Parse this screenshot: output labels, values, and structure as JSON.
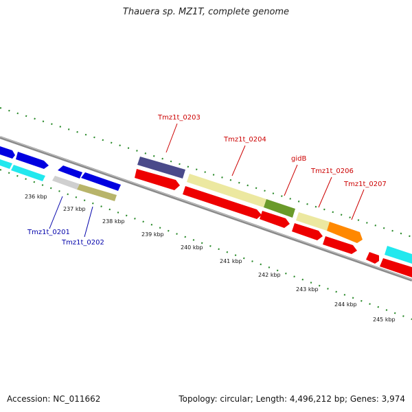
{
  "title": "Thauera sp. MZ1T, complete genome",
  "footer": {
    "accession": "Accession: NC_011662",
    "summary": "Topology: circular; Length: 4,496,212 bp; Genes: 3,974"
  },
  "colors": {
    "tick_green": "#2a8a2a",
    "label_red": "#cc0000",
    "label_blue": "#0000aa",
    "backbone": "#888888"
  },
  "ticks": [
    {
      "label": "236 kbp"
    },
    {
      "label": "237 kbp"
    },
    {
      "label": "238 kbp"
    },
    {
      "label": "239 kbp"
    },
    {
      "label": "240 kbp"
    },
    {
      "label": "241 kbp"
    },
    {
      "label": "242 kbp"
    },
    {
      "label": "243 kbp"
    },
    {
      "label": "244 kbp"
    },
    {
      "label": "245 kbp"
    }
  ],
  "gene_labels": [
    {
      "text": "Tmz1t_0203",
      "strand": "forward"
    },
    {
      "text": "Tmz1t_0204",
      "strand": "forward"
    },
    {
      "text": "gidB",
      "strand": "forward"
    },
    {
      "text": "Tmz1t_0206",
      "strand": "forward"
    },
    {
      "text": "Tmz1t_0207",
      "strand": "forward"
    },
    {
      "text": "Tmz1t_0201",
      "strand": "reverse"
    },
    {
      "text": "Tmz1t_0202",
      "strand": "reverse"
    }
  ]
}
